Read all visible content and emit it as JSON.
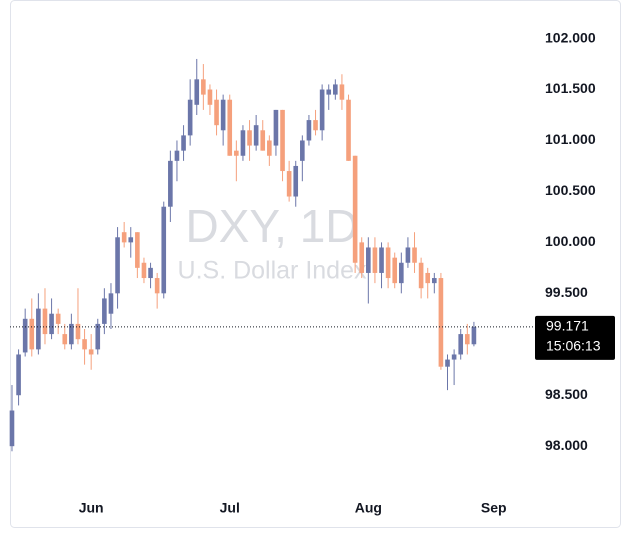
{
  "chart_data": {
    "type": "candlestick",
    "watermark_title": "DXY, 1D",
    "watermark_subtitle": "U.S. Dollar Index",
    "up_color": "#6b76a9",
    "down_color": "#f5a07c",
    "open": [
      98.0,
      98.5,
      98.92,
      99.25,
      98.95,
      99.35,
      99.1,
      99.3,
      99.1,
      99.0,
      99.2,
      99.05,
      98.95,
      98.95,
      99.2,
      99.3,
      99.5,
      100.1,
      100.0,
      100.1,
      99.8,
      99.65,
      99.65,
      99.5,
      100.35,
      100.8,
      100.9,
      101.05,
      101.35,
      101.6,
      101.5,
      101.4,
      101.1,
      101.4,
      100.9,
      100.85,
      101.1,
      100.95,
      101.1,
      101.0,
      100.95,
      101.3,
      100.7,
      100.45,
      100.8,
      101.0,
      101.2,
      101.1,
      101.45,
      101.45,
      101.55,
      101.4,
      100.85,
      100.0,
      99.7,
      99.95,
      99.7,
      99.95,
      99.85,
      99.6,
      99.8,
      99.95,
      99.8,
      99.7,
      99.6,
      99.65,
      98.78,
      98.85,
      98.9,
      99.1,
      99.0
    ],
    "high": [
      98.6,
      98.95,
      99.35,
      99.45,
      99.5,
      99.55,
      99.45,
      99.35,
      99.2,
      99.3,
      99.55,
      99.15,
      99.1,
      99.25,
      99.55,
      99.6,
      100.15,
      100.2,
      100.15,
      100.1,
      99.85,
      99.8,
      99.7,
      100.4,
      100.9,
      101.0,
      101.15,
      101.6,
      101.8,
      101.75,
      101.55,
      101.5,
      101.45,
      101.45,
      101.0,
      101.15,
      101.2,
      101.25,
      101.2,
      101.05,
      101.3,
      101.3,
      100.8,
      100.8,
      101.05,
      101.25,
      101.3,
      101.55,
      101.55,
      101.6,
      101.65,
      101.45,
      100.85,
      100.05,
      100.05,
      100.05,
      100.0,
      100.0,
      99.9,
      99.9,
      100.05,
      100.1,
      99.85,
      99.75,
      99.7,
      99.7,
      98.9,
      98.95,
      99.15,
      99.2,
      99.22
    ],
    "low": [
      97.95,
      98.4,
      98.88,
      98.88,
      98.9,
      99.0,
      99.05,
      99.1,
      98.95,
      98.95,
      99.0,
      98.8,
      98.75,
      98.9,
      99.1,
      99.15,
      99.35,
      99.95,
      99.85,
      99.65,
      99.6,
      99.55,
      99.35,
      99.45,
      100.2,
      100.6,
      100.8,
      100.95,
      101.25,
      101.3,
      101.25,
      101.05,
      100.95,
      100.85,
      100.6,
      100.8,
      100.8,
      100.9,
      100.9,
      100.75,
      100.85,
      100.6,
      100.4,
      100.35,
      100.6,
      100.95,
      101.05,
      101.0,
      101.3,
      101.4,
      101.3,
      100.8,
      99.7,
      99.65,
      99.4,
      99.6,
      99.55,
      99.55,
      99.55,
      99.5,
      99.75,
      99.7,
      99.45,
      99.45,
      99.5,
      98.75,
      98.55,
      98.6,
      98.85,
      98.9,
      98.98
    ],
    "close": [
      98.35,
      98.9,
      99.25,
      98.95,
      99.35,
      99.1,
      99.3,
      99.2,
      99.0,
      99.2,
      99.05,
      98.95,
      98.9,
      99.2,
      99.45,
      99.5,
      100.05,
      100.0,
      100.05,
      99.75,
      99.65,
      99.75,
      99.5,
      100.35,
      100.8,
      100.9,
      101.05,
      101.4,
      101.6,
      101.45,
      101.35,
      101.15,
      101.4,
      100.85,
      100.85,
      101.1,
      100.95,
      101.15,
      100.9,
      100.85,
      101.3,
      100.7,
      100.45,
      100.75,
      101.0,
      101.2,
      101.1,
      101.5,
      101.5,
      101.55,
      101.4,
      100.8,
      99.8,
      99.7,
      99.95,
      99.7,
      99.95,
      99.65,
      99.6,
      99.8,
      99.95,
      99.8,
      99.55,
      99.6,
      99.65,
      98.78,
      98.85,
      98.9,
      99.1,
      99.0,
      99.171
    ],
    "ylim": [
      97.57,
      102.3
    ],
    "yticks": [
      {
        "value": 98,
        "label": "98.000"
      },
      {
        "value": 98.5,
        "label": "98.500"
      },
      {
        "value": 99,
        "label": "99.000"
      },
      {
        "value": 99.5,
        "label": "99.500"
      },
      {
        "value": 100,
        "label": "100.000"
      },
      {
        "value": 100.5,
        "label": "100.500"
      },
      {
        "value": 101,
        "label": "101.000"
      },
      {
        "value": 101.5,
        "label": "101.500"
      },
      {
        "value": 102,
        "label": "102.000"
      }
    ],
    "xlim": [
      -0.3,
      78.5
    ],
    "xticks": [
      {
        "value": 12,
        "label": "Jun"
      },
      {
        "value": 33,
        "label": "Jul"
      },
      {
        "value": 54,
        "label": "Aug"
      },
      {
        "value": 73,
        "label": "Sep"
      }
    ],
    "last_price": 99.171,
    "countdown": "15:06:13"
  }
}
